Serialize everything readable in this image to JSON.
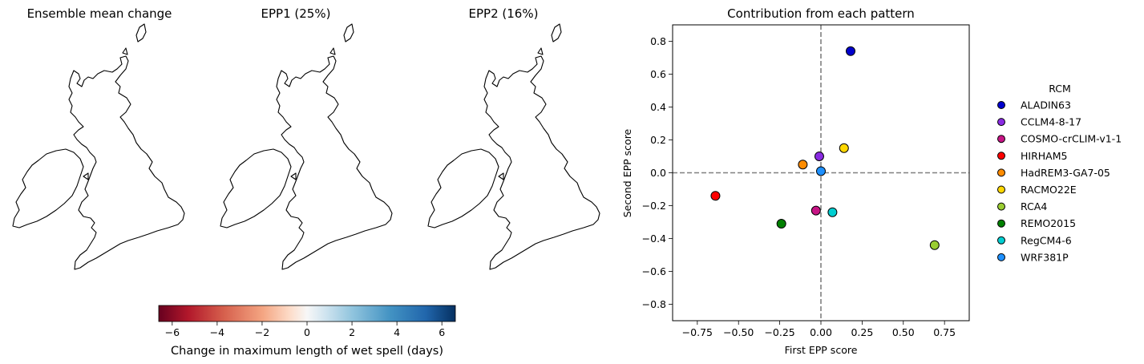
{
  "maps": [
    {
      "title": "Ensemble mean change",
      "style": "neutral"
    },
    {
      "title": "EPP1 (25%)",
      "style": "epp1"
    },
    {
      "title": "EPP2 (16%)",
      "style": "epp2"
    }
  ],
  "colorbar": {
    "label": "Change in maximum length of wet spell (days)",
    "colormap": "RdBu",
    "min": -6.6,
    "max": 6.6,
    "ticks": [
      -6,
      -4,
      -2,
      0,
      2,
      4,
      6
    ],
    "tick_labels": [
      "−6",
      "−4",
      "−2",
      "0",
      "2",
      "4",
      "6"
    ]
  },
  "chart_data": {
    "type": "scatter",
    "title": "Contribution from each pattern",
    "xlabel": "First EPP score",
    "ylabel": "Second EPP score",
    "xlim": [
      -0.9,
      0.9
    ],
    "ylim": [
      -0.9,
      0.9
    ],
    "xticks": [
      -0.75,
      -0.5,
      -0.25,
      0.0,
      0.25,
      0.5,
      0.75
    ],
    "xtick_labels": [
      "−0.75",
      "−0.50",
      "−0.25",
      "0.00",
      "0.25",
      "0.50",
      "0.75"
    ],
    "yticks": [
      -0.8,
      -0.6,
      -0.4,
      -0.2,
      0.0,
      0.2,
      0.4,
      0.6,
      0.8
    ],
    "ytick_labels": [
      "−0.8",
      "−0.6",
      "−0.4",
      "−0.2",
      "0.0",
      "0.2",
      "0.4",
      "0.6",
      "0.8"
    ],
    "grid": false,
    "reference_lines": {
      "x": 0,
      "y": 0,
      "style": "dashed",
      "color": "#808080"
    },
    "legend": {
      "title": "RCM",
      "placement": "outside-right"
    },
    "points": [
      {
        "name": "ALADIN63",
        "x": 0.18,
        "y": 0.74,
        "color": "#0000cd"
      },
      {
        "name": "CCLM4-8-17",
        "x": -0.01,
        "y": 0.1,
        "color": "#8a2be2"
      },
      {
        "name": "COSMO-crCLIM-v1-1",
        "x": -0.03,
        "y": -0.23,
        "color": "#c71585"
      },
      {
        "name": "HIRHAM5",
        "x": -0.64,
        "y": -0.14,
        "color": "#ff0000"
      },
      {
        "name": "HadREM3-GA7-05",
        "x": -0.11,
        "y": 0.05,
        "color": "#ff8c00"
      },
      {
        "name": "RACMO22E",
        "x": 0.14,
        "y": 0.15,
        "color": "#ffd700"
      },
      {
        "name": "RCA4",
        "x": 0.69,
        "y": -0.44,
        "color": "#9acd32"
      },
      {
        "name": "REMO2015",
        "x": -0.24,
        "y": -0.31,
        "color": "#008000"
      },
      {
        "name": "RegCM4-6",
        "x": 0.07,
        "y": -0.24,
        "color": "#00ced1"
      },
      {
        "name": "WRF381P",
        "x": 0.0,
        "y": 0.01,
        "color": "#1e90ff"
      }
    ]
  }
}
